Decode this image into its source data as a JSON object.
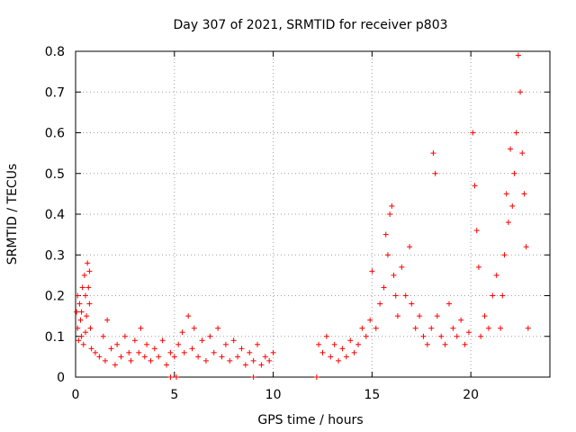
{
  "chart_data": {
    "type": "scatter",
    "title": "Day 307 of 2021, SRMTID for receiver p803",
    "xlabel": "GPS time / hours",
    "ylabel": "SRMTID / TECUs",
    "xlim": [
      0,
      24
    ],
    "ylim": [
      0,
      0.8
    ],
    "x_ticks": [
      0,
      5,
      10,
      15,
      20
    ],
    "x_tick_labels": [
      "0",
      "5",
      "10",
      "15",
      "20"
    ],
    "y_ticks": [
      0,
      0.1,
      0.2,
      0.3,
      0.4,
      0.5,
      0.6,
      0.7,
      0.8
    ],
    "y_tick_labels": [
      "0",
      "0.1",
      "0.2",
      "0.3",
      "0.4",
      "0.5",
      "0.6",
      "0.7",
      "0.8"
    ],
    "grid": true,
    "marker": "+",
    "color": "#ff0000",
    "series": [
      {
        "name": "SRMTID",
        "points": [
          [
            0.05,
            0.16
          ],
          [
            0.1,
            0.12
          ],
          [
            0.15,
            0.09
          ],
          [
            0.2,
            0.18
          ],
          [
            0.25,
            0.14
          ],
          [
            0.3,
            0.1
          ],
          [
            0.35,
            0.22
          ],
          [
            0.4,
            0.08
          ],
          [
            0.45,
            0.25
          ],
          [
            0.5,
            0.2
          ],
          [
            0.55,
            0.15
          ],
          [
            0.6,
            0.28
          ],
          [
            0.65,
            0.22
          ],
          [
            0.7,
            0.26
          ],
          [
            0.75,
            0.12
          ],
          [
            0.8,
            0.07
          ],
          [
            0.1,
            0.2
          ],
          [
            0.3,
            0.16
          ],
          [
            0.5,
            0.11
          ],
          [
            0.7,
            0.18
          ],
          [
            1.0,
            0.06
          ],
          [
            1.2,
            0.05
          ],
          [
            1.4,
            0.1
          ],
          [
            1.5,
            0.04
          ],
          [
            1.6,
            0.14
          ],
          [
            1.8,
            0.07
          ],
          [
            2.0,
            0.03
          ],
          [
            2.1,
            0.08
          ],
          [
            2.3,
            0.05
          ],
          [
            2.5,
            0.1
          ],
          [
            2.7,
            0.06
          ],
          [
            2.8,
            0.04
          ],
          [
            3.0,
            0.09
          ],
          [
            3.2,
            0.06
          ],
          [
            3.3,
            0.12
          ],
          [
            3.5,
            0.05
          ],
          [
            3.6,
            0.08
          ],
          [
            3.8,
            0.04
          ],
          [
            4.0,
            0.07
          ],
          [
            4.2,
            0.05
          ],
          [
            4.4,
            0.09
          ],
          [
            4.6,
            0.03
          ],
          [
            4.8,
            0.06
          ],
          [
            5.0,
            0.05
          ],
          [
            5.2,
            0.08
          ],
          [
            5.4,
            0.11
          ],
          [
            5.5,
            0.06
          ],
          [
            5.7,
            0.15
          ],
          [
            5.9,
            0.07
          ],
          [
            6.0,
            0.12
          ],
          [
            6.2,
            0.05
          ],
          [
            6.4,
            0.09
          ],
          [
            6.6,
            0.04
          ],
          [
            6.8,
            0.1
          ],
          [
            7.0,
            0.06
          ],
          [
            7.2,
            0.12
          ],
          [
            7.4,
            0.05
          ],
          [
            7.6,
            0.08
          ],
          [
            7.8,
            0.04
          ],
          [
            8.0,
            0.09
          ],
          [
            8.2,
            0.05
          ],
          [
            8.4,
            0.07
          ],
          [
            8.6,
            0.03
          ],
          [
            8.8,
            0.06
          ],
          [
            9.0,
            0.04
          ],
          [
            9.2,
            0.08
          ],
          [
            9.4,
            0.03
          ],
          [
            9.6,
            0.05
          ],
          [
            9.8,
            0.04
          ],
          [
            10.0,
            0.06
          ],
          [
            4.8,
            0.0
          ],
          [
            5.1,
            0.0
          ],
          [
            9.0,
            0.0
          ],
          [
            12.2,
            0.0
          ],
          [
            12.3,
            0.08
          ],
          [
            12.5,
            0.06
          ],
          [
            12.7,
            0.1
          ],
          [
            12.9,
            0.05
          ],
          [
            13.1,
            0.08
          ],
          [
            13.3,
            0.04
          ],
          [
            13.5,
            0.07
          ],
          [
            13.7,
            0.05
          ],
          [
            13.9,
            0.09
          ],
          [
            14.1,
            0.06
          ],
          [
            14.3,
            0.08
          ],
          [
            14.5,
            0.12
          ],
          [
            14.7,
            0.1
          ],
          [
            14.9,
            0.14
          ],
          [
            15.0,
            0.26
          ],
          [
            15.2,
            0.12
          ],
          [
            15.4,
            0.18
          ],
          [
            15.6,
            0.22
          ],
          [
            15.7,
            0.35
          ],
          [
            15.8,
            0.3
          ],
          [
            15.9,
            0.4
          ],
          [
            16.0,
            0.42
          ],
          [
            16.1,
            0.25
          ],
          [
            16.2,
            0.2
          ],
          [
            16.3,
            0.15
          ],
          [
            16.5,
            0.27
          ],
          [
            16.7,
            0.2
          ],
          [
            16.9,
            0.32
          ],
          [
            17.0,
            0.18
          ],
          [
            17.2,
            0.12
          ],
          [
            17.4,
            0.15
          ],
          [
            17.6,
            0.1
          ],
          [
            17.8,
            0.08
          ],
          [
            18.0,
            0.12
          ],
          [
            18.1,
            0.55
          ],
          [
            18.2,
            0.5
          ],
          [
            18.3,
            0.15
          ],
          [
            18.5,
            0.1
          ],
          [
            18.7,
            0.08
          ],
          [
            18.9,
            0.18
          ],
          [
            19.1,
            0.12
          ],
          [
            19.3,
            0.1
          ],
          [
            19.5,
            0.14
          ],
          [
            19.7,
            0.08
          ],
          [
            19.9,
            0.11
          ],
          [
            20.1,
            0.6
          ],
          [
            20.2,
            0.47
          ],
          [
            20.3,
            0.36
          ],
          [
            20.4,
            0.27
          ],
          [
            20.5,
            0.1
          ],
          [
            20.7,
            0.15
          ],
          [
            20.9,
            0.12
          ],
          [
            21.1,
            0.2
          ],
          [
            21.3,
            0.25
          ],
          [
            21.5,
            0.12
          ],
          [
            21.6,
            0.2
          ],
          [
            21.7,
            0.3
          ],
          [
            21.8,
            0.45
          ],
          [
            21.9,
            0.38
          ],
          [
            22.0,
            0.56
          ],
          [
            22.1,
            0.42
          ],
          [
            22.2,
            0.5
          ],
          [
            22.3,
            0.6
          ],
          [
            22.4,
            0.79
          ],
          [
            22.5,
            0.7
          ],
          [
            22.6,
            0.55
          ],
          [
            22.7,
            0.45
          ],
          [
            22.8,
            0.32
          ],
          [
            22.9,
            0.12
          ]
        ]
      }
    ]
  }
}
